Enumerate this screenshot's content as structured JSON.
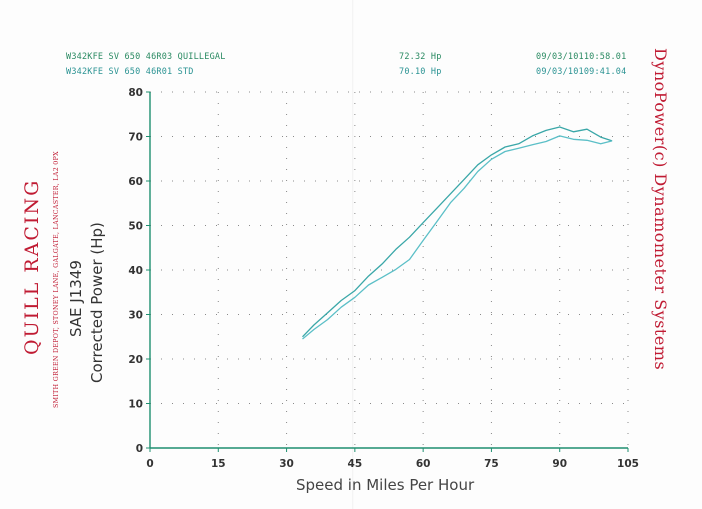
{
  "header": {
    "run1": {
      "label": "W342KFE SV 650 46R03 QUILLEGAL",
      "power": "72.32 Hp",
      "stamp": "09/03/10110:58.01"
    },
    "run2": {
      "label": "W342KFE SV 650 46R01 STD",
      "power": "70.10 Hp",
      "stamp": "09/03/10109:41.04"
    }
  },
  "side": {
    "brand": "QUILL RACING",
    "address": "SMITH GREEN DEPOT, STONEY LANE, GALGATE, LANCASTER, LA2 0PX",
    "ylabel_line1": "SAE J1349",
    "ylabel_line2": "Corrected Power (Hp)",
    "maker": "DynoPower(c) Dynamometer Systems"
  },
  "chart_data": {
    "type": "line",
    "xlabel": "Speed in Miles Per Hour",
    "ylabel": "SAE J1349 Corrected Power (Hp)",
    "xlim": [
      0,
      105
    ],
    "ylim": [
      0,
      80
    ],
    "xticks": [
      0,
      15,
      30,
      45,
      60,
      75,
      90,
      105
    ],
    "yticks": [
      0,
      10,
      20,
      30,
      40,
      50,
      60,
      70,
      80
    ],
    "grid": true,
    "colors": {
      "run1": "#3aa7a8",
      "run2": "#5bbfc7"
    },
    "series": [
      {
        "name": "W342KFE SV 650 46R03 QUILLEGAL",
        "x": [
          33.5,
          36,
          39,
          42,
          45,
          48,
          51,
          54,
          57,
          60,
          63,
          66,
          69,
          72,
          75,
          78,
          81,
          84,
          87,
          90,
          93,
          96,
          99,
          101.5
        ],
        "y": [
          25,
          27.5,
          30.5,
          33,
          35.5,
          38.5,
          41.5,
          44.5,
          47.5,
          50.5,
          54,
          57,
          60.5,
          63.5,
          66,
          67.5,
          68.5,
          70,
          71.5,
          72,
          71.2,
          71.5,
          70,
          69
        ]
      },
      {
        "name": "W342KFE SV 650 46R01 STD",
        "x": [
          33.5,
          36,
          39,
          42,
          45,
          48,
          51,
          54,
          57,
          60,
          63,
          66,
          69,
          72,
          75,
          78,
          81,
          84,
          87,
          90,
          93,
          96,
          99,
          101.5
        ],
        "y": [
          24.5,
          26.5,
          29,
          31.5,
          34,
          36.5,
          38.5,
          40,
          42.5,
          46.5,
          51,
          55,
          58.5,
          62,
          65,
          66.5,
          67.5,
          68,
          69,
          70,
          69.5,
          69,
          68.5,
          69
        ]
      }
    ]
  }
}
